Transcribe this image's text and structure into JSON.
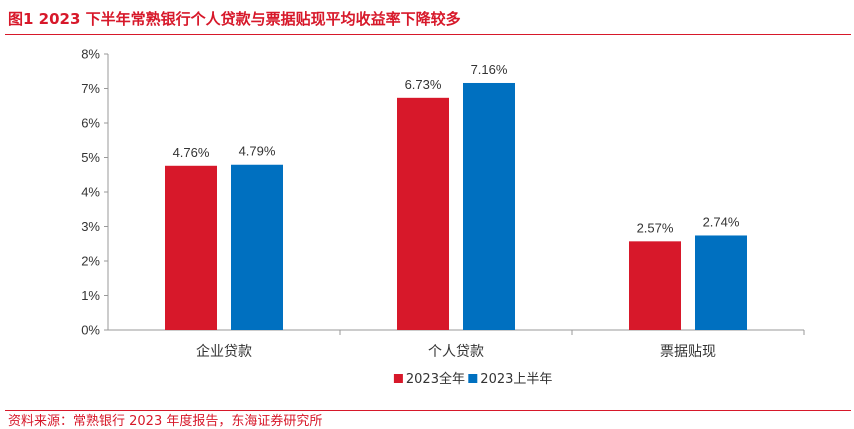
{
  "title": "图1  2023 下半年常熟银行个人贷款与票据贴现平均收益率下降较多",
  "source": "资料来源：常熟银行 2023 年度报告，东海证券研究所",
  "chart_data": {
    "type": "bar",
    "categories": [
      "企业贷款",
      "个人贷款",
      "票据贴现"
    ],
    "series": [
      {
        "name": "2023全年",
        "color": "#d7182a",
        "values": [
          4.76,
          6.73,
          2.57
        ],
        "labels": [
          "4.76%",
          "6.73%",
          "2.57%"
        ]
      },
      {
        "name": "2023上半年",
        "color": "#0070c0",
        "values": [
          4.79,
          7.16,
          2.74
        ],
        "labels": [
          "4.79%",
          "7.16%",
          "2.74%"
        ]
      }
    ],
    "ylim": [
      0,
      8
    ],
    "yticks": [
      0,
      1,
      2,
      3,
      4,
      5,
      6,
      7,
      8
    ],
    "ytick_labels": [
      "0%",
      "1%",
      "2%",
      "3%",
      "4%",
      "5%",
      "6%",
      "7%",
      "8%"
    ],
    "xlabel": "",
    "ylabel": "",
    "legend_position": "bottom-center"
  }
}
